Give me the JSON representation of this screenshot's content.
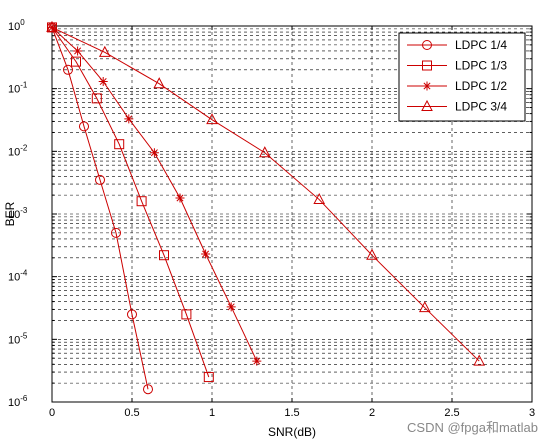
{
  "chart_data": {
    "type": "line",
    "title": "",
    "xlabel": "SNR(dB)",
    "ylabel": "BER",
    "xlim": [
      0,
      3
    ],
    "ylim": [
      1e-06,
      1
    ],
    "yscale": "log",
    "grid": true,
    "legend_position": "top-right",
    "x_ticks": [
      0,
      0.5,
      1,
      1.5,
      2,
      2.5,
      3
    ],
    "x_tick_labels": [
      "0",
      "0.5",
      "1",
      "1.5",
      "2",
      "2.5",
      "3"
    ],
    "y_tick_exponents": [
      0,
      -1,
      -2,
      -3,
      -4,
      -5,
      -6
    ],
    "series": [
      {
        "name": "LDPC 1/4",
        "marker": "circle",
        "color": "#cc0000",
        "x": [
          0,
          0.1,
          0.2,
          0.3,
          0.4,
          0.5,
          0.6
        ],
        "y": [
          0.95,
          0.2,
          0.025,
          0.0035,
          0.0005,
          2.5e-05,
          1.6e-06
        ]
      },
      {
        "name": "LDPC 1/3",
        "marker": "square",
        "color": "#cc0000",
        "x": [
          0,
          0.15,
          0.28,
          0.42,
          0.56,
          0.7,
          0.84,
          0.98
        ],
        "y": [
          0.95,
          0.27,
          0.07,
          0.013,
          0.0016,
          0.00022,
          2.5e-05,
          2.5e-06
        ]
      },
      {
        "name": "LDPC 1/2",
        "marker": "star",
        "color": "#cc0000",
        "x": [
          0,
          0.16,
          0.32,
          0.48,
          0.64,
          0.8,
          0.96,
          1.12,
          1.28
        ],
        "y": [
          0.95,
          0.4,
          0.13,
          0.033,
          0.0095,
          0.0018,
          0.00023,
          3.3e-05,
          4.5e-06
        ]
      },
      {
        "name": "LDPC 3/4",
        "marker": "triangle",
        "color": "#cc0000",
        "x": [
          0,
          0.33,
          0.67,
          1,
          1.33,
          1.67,
          2,
          2.33,
          2.67
        ],
        "y": [
          0.95,
          0.38,
          0.12,
          0.032,
          0.0095,
          0.0017,
          0.00022,
          3.2e-05,
          4.5e-06
        ]
      }
    ]
  },
  "watermark": "CSDN @fpga和matlab"
}
